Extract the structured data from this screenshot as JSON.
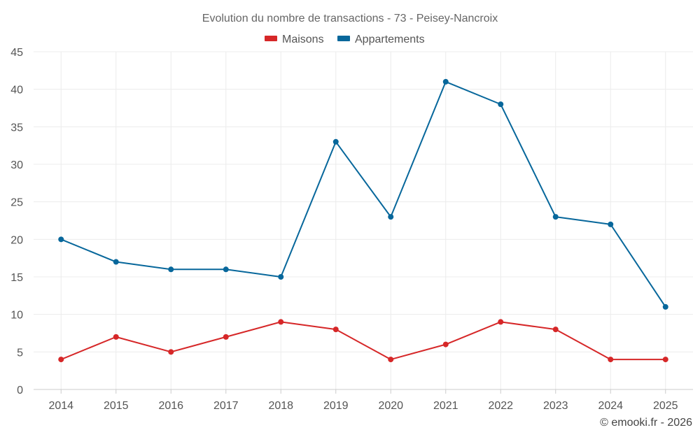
{
  "chart_data": {
    "type": "line",
    "title": "Evolution du nombre de transactions - 73 - Peisey-Nancroix",
    "categories": [
      "2014",
      "2015",
      "2016",
      "2017",
      "2018",
      "2019",
      "2020",
      "2021",
      "2022",
      "2023",
      "2024",
      "2025"
    ],
    "series": [
      {
        "name": "Maisons",
        "color": "#d62728",
        "values": [
          4,
          7,
          5,
          7,
          9,
          8,
          4,
          6,
          9,
          8,
          4,
          4
        ]
      },
      {
        "name": "Appartements",
        "color": "#07679b",
        "values": [
          20,
          17,
          16,
          16,
          15,
          33,
          23,
          41,
          38,
          23,
          22,
          11
        ]
      }
    ],
    "yticks": [
      0,
      5,
      10,
      15,
      20,
      25,
      30,
      35,
      40,
      45
    ],
    "ylim": [
      0,
      45
    ],
    "xlabel": "",
    "ylabel": "",
    "grid": true,
    "legend_position": "top-center"
  },
  "credit": "© emooki.fr - 2026"
}
